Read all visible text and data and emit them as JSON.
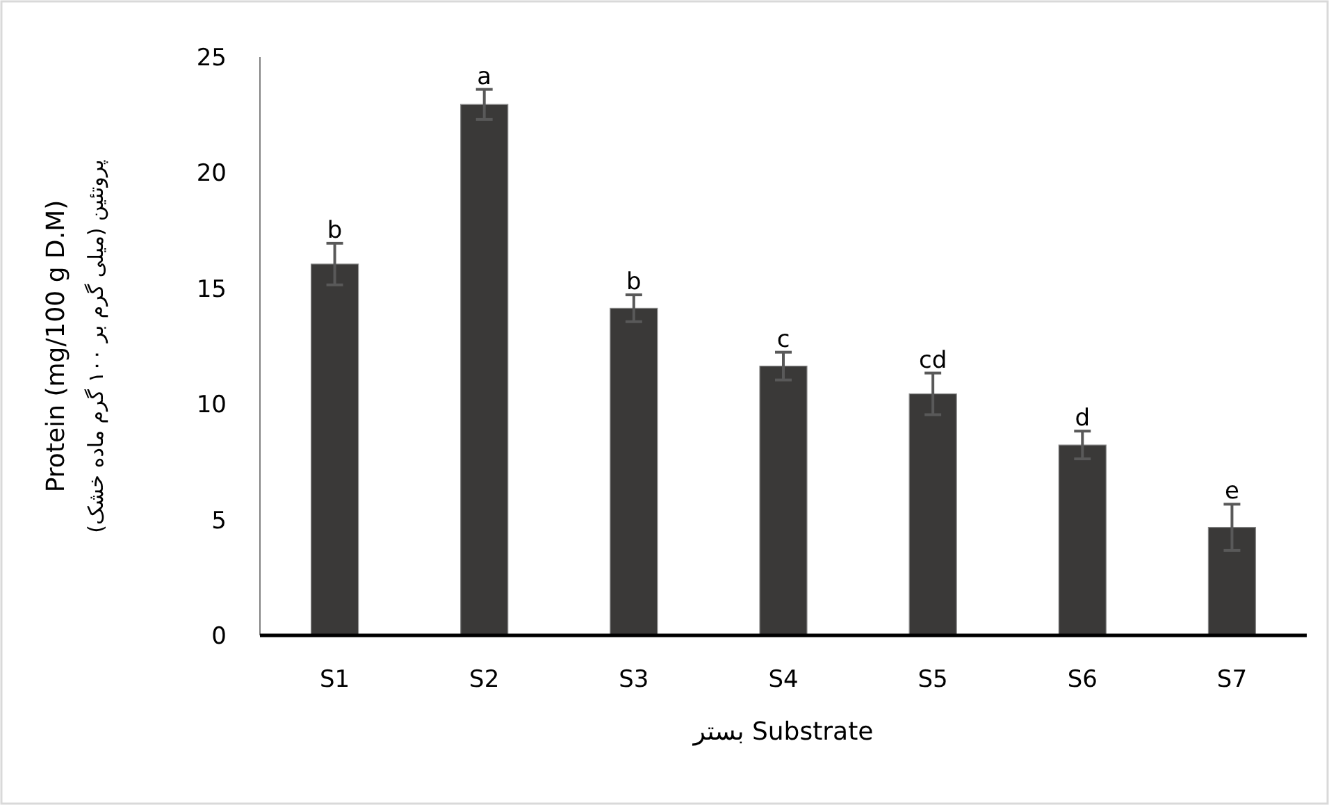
{
  "chart_data": {
    "type": "bar",
    "xlabel": "بستر Substrate",
    "ylabel": [
      "Protein (mg/100 g D.M)",
      "پروتئین (میلی گرم بر ۱۰۰ گرم ماده خشک)"
    ],
    "categories": [
      "S1",
      "S2",
      "S3",
      "S4",
      "S5",
      "S6",
      "S7"
    ],
    "values": [
      16.05,
      22.95,
      14.14,
      11.64,
      10.44,
      8.23,
      4.67
    ],
    "errors": [
      0.9,
      0.65,
      0.58,
      0.6,
      0.9,
      0.6,
      1.0
    ],
    "color": "#3a3938",
    "ylim": [
      0,
      25
    ],
    "yticks": [
      0,
      5,
      10,
      15,
      20,
      25
    ],
    "grid": false,
    "annotations": [
      {
        "text": "b",
        "x": "S1",
        "y": 16.95
      },
      {
        "text": "a",
        "x": "S2",
        "y": 23.6
      },
      {
        "text": "b",
        "x": "S3",
        "y": 14.72
      },
      {
        "text": "c",
        "x": "S4",
        "y": 12.24
      },
      {
        "text": "cd",
        "x": "S5",
        "y": 11.34
      },
      {
        "text": "d",
        "x": "S6",
        "y": 8.83
      },
      {
        "text": "e",
        "x": "S7",
        "y": 5.67
      }
    ]
  }
}
